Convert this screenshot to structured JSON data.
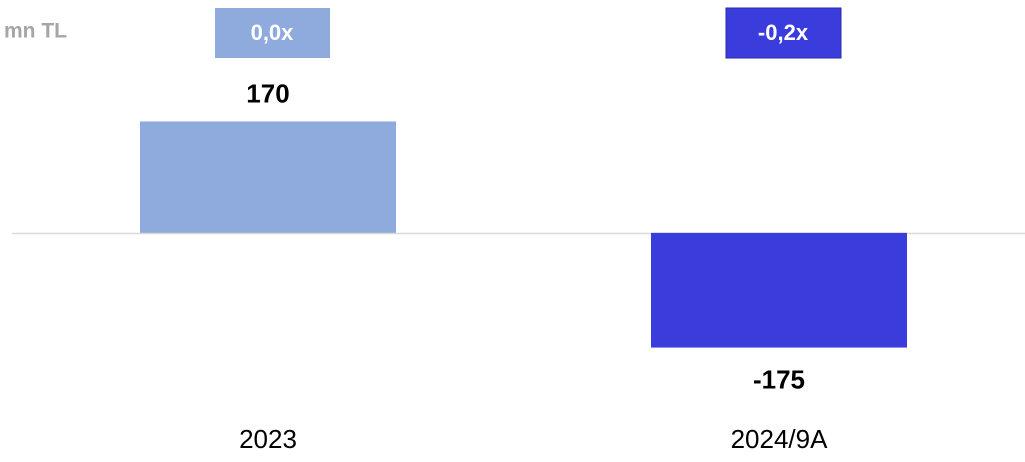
{
  "chart_data": {
    "type": "bar",
    "unit_label": "mn TL",
    "categories": [
      "2023",
      "2024/9A"
    ],
    "values": [
      170,
      -175
    ],
    "colors": [
      "#8faadc",
      "#3a3ddc"
    ],
    "multiples": [
      "0,0x",
      "-0,2x"
    ],
    "ylim": [
      -300,
      250
    ]
  }
}
